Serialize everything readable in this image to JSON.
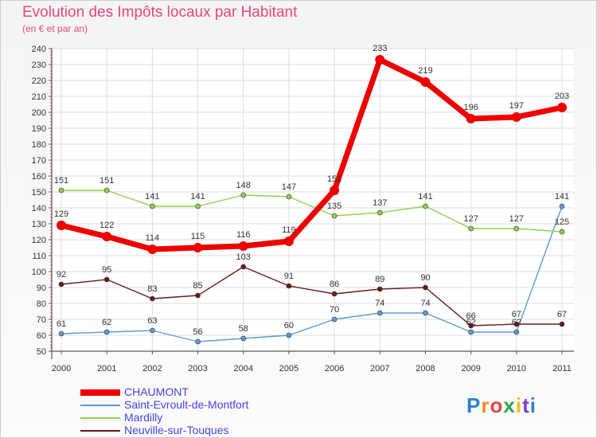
{
  "header": {
    "title": "Evolution des Impôts locaux par Habitant",
    "subtitle": "(en € et par an)"
  },
  "logo": {
    "text": "Proxiti"
  },
  "chart_data": {
    "type": "line",
    "title": "Evolution des Impôts locaux par Habitant",
    "subtitle": "(en € et par an)",
    "x": [
      "2000",
      "2001",
      "2002",
      "2003",
      "2004",
      "2005",
      "2006",
      "2007",
      "2008",
      "2009",
      "2010",
      "2011"
    ],
    "ylim": [
      50,
      240
    ],
    "yticks": [
      50,
      60,
      70,
      80,
      90,
      100,
      110,
      120,
      130,
      140,
      150,
      160,
      170,
      180,
      190,
      200,
      210,
      220,
      230,
      240
    ],
    "grid": true,
    "legend": "bottom-left",
    "series": [
      {
        "name": "CHAUMONT",
        "color": "#ee0000",
        "width": "thick",
        "values": [
          129,
          122,
          114,
          115,
          116,
          119,
          151,
          233,
          219,
          196,
          197,
          203
        ]
      },
      {
        "name": "Saint-Evroult-de-Montfort",
        "color": "#5b9bd5",
        "width": "thin",
        "values": [
          61,
          62,
          63,
          56,
          58,
          60,
          70,
          74,
          74,
          62,
          62,
          141
        ]
      },
      {
        "name": "Mardilly",
        "color": "#8fd14f",
        "width": "thin",
        "values": [
          151,
          151,
          141,
          141,
          148,
          147,
          135,
          137,
          141,
          127,
          127,
          125
        ]
      },
      {
        "name": "Neuville-sur-Touques",
        "color": "#6b1a1a",
        "width": "thin",
        "values": [
          92,
          95,
          83,
          85,
          103,
          91,
          86,
          89,
          90,
          66,
          67,
          67
        ]
      }
    ]
  }
}
